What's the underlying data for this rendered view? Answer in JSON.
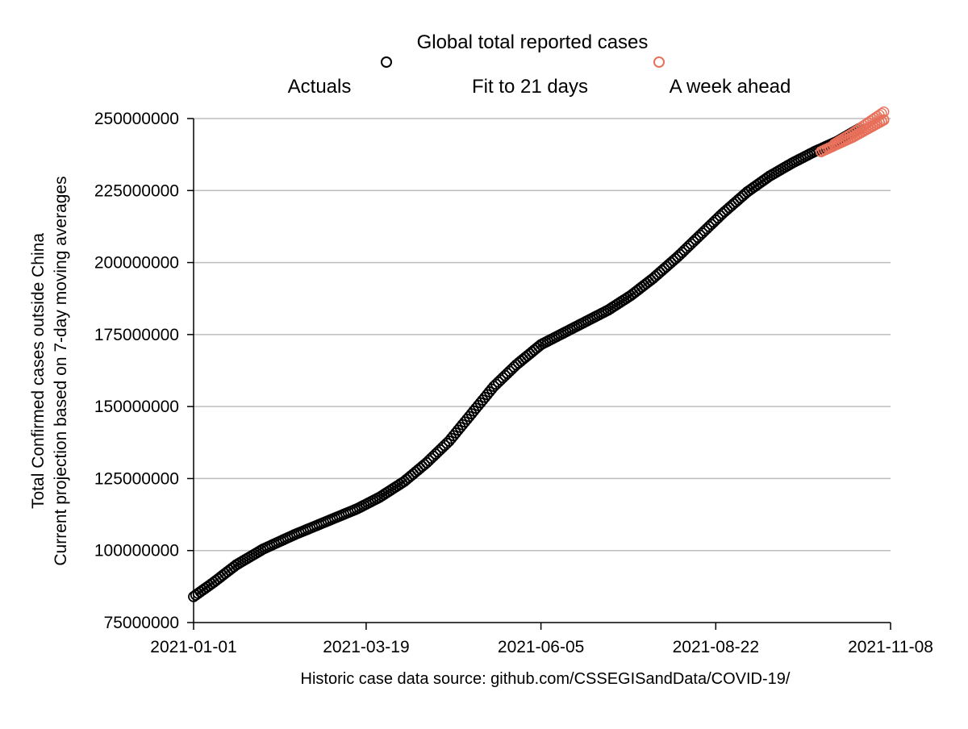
{
  "chart_data": {
    "type": "scatter",
    "title": "Global total reported cases",
    "ylabel": [
      "Total Confirmed cases outside China",
      "Current projection based on 7-day moving averages"
    ],
    "xlabel": "Historic case data source: github.com/CSSEGISandData/COVID-19/",
    "legend": {
      "placement": "top",
      "entries": [
        {
          "name": "Actuals",
          "marker": "open-circle",
          "color": "#000000"
        },
        {
          "name": "Fit to 21 days",
          "marker": "none",
          "color": "#000000"
        },
        {
          "name": "A week ahead",
          "marker": "open-circle",
          "color": "#e8705a"
        }
      ]
    },
    "xlim": [
      "2021-01-01",
      "2021-11-08"
    ],
    "ylim": [
      75000000,
      250000000
    ],
    "x_ticks": [
      "2021-01-01",
      "2021-03-19",
      "2021-06-05",
      "2021-08-22",
      "2021-11-08"
    ],
    "y_ticks": [
      75000000,
      100000000,
      125000000,
      150000000,
      175000000,
      200000000,
      225000000,
      250000000
    ],
    "grid": "horizontal",
    "series": [
      {
        "name": "Actuals",
        "color": "#000000",
        "marker": "open-circle",
        "frequency": "daily",
        "points": [
          [
            "2021-01-01",
            84000000
          ],
          [
            "2021-01-10",
            89000000
          ],
          [
            "2021-01-20",
            95000000
          ],
          [
            "2021-02-01",
            100500000
          ],
          [
            "2021-02-15",
            105500000
          ],
          [
            "2021-03-01",
            110000000
          ],
          [
            "2021-03-15",
            114500000
          ],
          [
            "2021-03-25",
            118500000
          ],
          [
            "2021-04-05",
            124000000
          ],
          [
            "2021-04-15",
            130500000
          ],
          [
            "2021-04-25",
            138000000
          ],
          [
            "2021-05-05",
            147500000
          ],
          [
            "2021-05-15",
            157000000
          ],
          [
            "2021-05-25",
            164500000
          ],
          [
            "2021-06-05",
            171500000
          ],
          [
            "2021-06-15",
            175500000
          ],
          [
            "2021-06-25",
            179500000
          ],
          [
            "2021-07-05",
            183500000
          ],
          [
            "2021-07-15",
            188500000
          ],
          [
            "2021-07-25",
            194500000
          ],
          [
            "2021-08-05",
            202000000
          ],
          [
            "2021-08-15",
            209500000
          ],
          [
            "2021-08-25",
            217000000
          ],
          [
            "2021-09-05",
            224500000
          ],
          [
            "2021-09-15",
            230000000
          ],
          [
            "2021-09-25",
            234500000
          ],
          [
            "2021-10-05",
            238500000
          ],
          [
            "2021-10-15",
            242000000
          ],
          [
            "2021-10-25",
            246500000
          ]
        ]
      },
      {
        "name": "A week ahead",
        "color": "#e8705a",
        "marker": "open-circle",
        "frequency": "daily",
        "points": [
          [
            "2021-10-08",
            238500000
          ],
          [
            "2021-10-15",
            241000000
          ],
          [
            "2021-10-22",
            243500000
          ],
          [
            "2021-10-29",
            246500000
          ],
          [
            "2021-11-05",
            249500000
          ]
        ]
      }
    ]
  }
}
